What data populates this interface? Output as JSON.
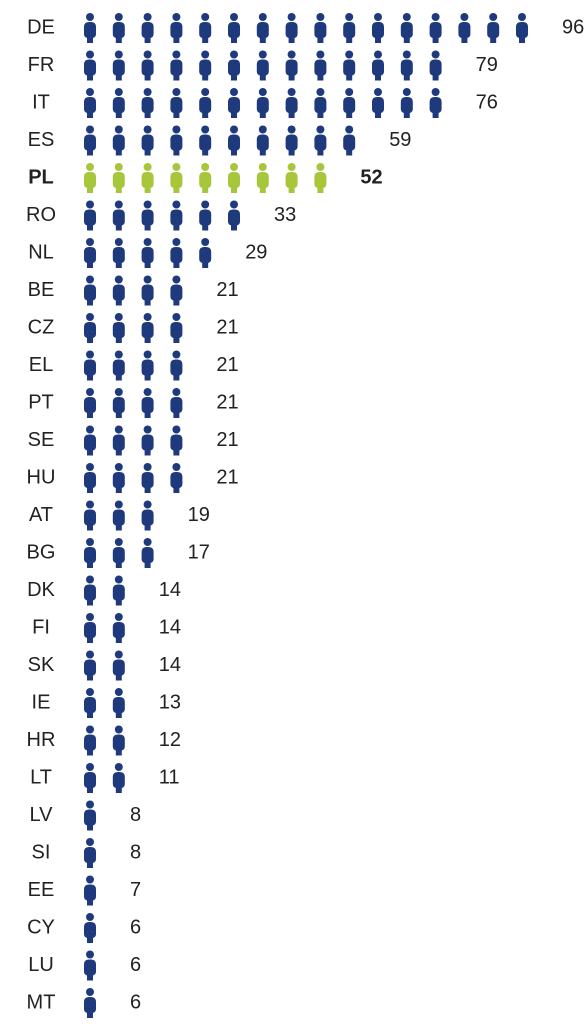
{
  "chart_data": {
    "type": "pictogram",
    "categories": [
      "DE",
      "FR",
      "IT",
      "ES",
      "PL",
      "RO",
      "NL",
      "BE",
      "CZ",
      "EL",
      "PT",
      "SE",
      "HU",
      "AT",
      "BG",
      "DK",
      "FI",
      "SK",
      "IE",
      "HR",
      "LT",
      "LV",
      "SI",
      "EE",
      "CY",
      "LU",
      "MT"
    ],
    "values": [
      96,
      79,
      76,
      59,
      52,
      33,
      29,
      21,
      21,
      21,
      21,
      21,
      21,
      19,
      17,
      14,
      14,
      14,
      13,
      12,
      11,
      8,
      8,
      7,
      6,
      6,
      6
    ],
    "colors": [
      "#1f3a7c",
      "#1f3a7c",
      "#1f3a7c",
      "#1f3a7c",
      "#a8c63c",
      "#1f3a7c",
      "#1f3a7c",
      "#1f3a7c",
      "#1f3a7c",
      "#1f3a7c",
      "#1f3a7c",
      "#1f3a7c",
      "#1f3a7c",
      "#1f3a7c",
      "#1f3a7c",
      "#1f3a7c",
      "#1f3a7c",
      "#1f3a7c",
      "#1f3a7c",
      "#1f3a7c",
      "#1f3a7c",
      "#1f3a7c",
      "#1f3a7c",
      "#1f3a7c",
      "#1f3a7c",
      "#1f3a7c",
      "#1f3a7c"
    ],
    "bold": [
      "PL"
    ]
  }
}
